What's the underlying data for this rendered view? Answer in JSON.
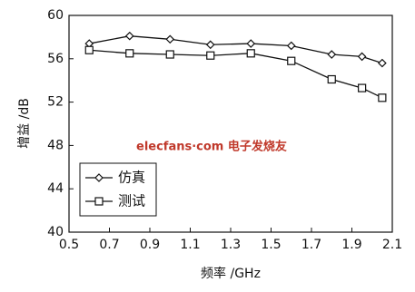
{
  "chart_data": {
    "type": "line",
    "x_label": "频率 /GHz",
    "y_label": "增益 /dB",
    "annotation": "elecfans·com 电子发烧友",
    "x": [
      0.6,
      0.8,
      1.0,
      1.2,
      1.4,
      1.6,
      1.8,
      1.95,
      2.05
    ],
    "series": [
      {
        "name": "仿真",
        "color": "#111111",
        "marker": "diamond",
        "values": [
          57.4,
          58.1,
          57.8,
          57.3,
          57.4,
          57.2,
          56.4,
          56.2,
          55.6
        ]
      },
      {
        "name": "测试",
        "color": "#111111",
        "marker": "square",
        "values": [
          56.8,
          56.5,
          56.4,
          56.3,
          56.5,
          55.8,
          54.1,
          53.3,
          52.4
        ]
      }
    ],
    "xlim": [
      0.5,
      2.1
    ],
    "xticks": [
      0.5,
      0.7,
      0.9,
      1.1,
      1.3,
      1.5,
      1.7,
      1.9,
      2.1
    ],
    "ylim": [
      40,
      60
    ],
    "yticks": [
      40,
      44,
      48,
      52,
      56,
      60
    ],
    "legend": "lower left"
  }
}
